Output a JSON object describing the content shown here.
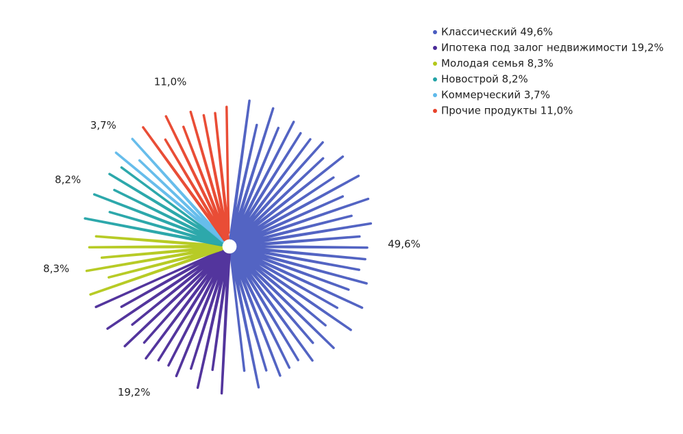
{
  "chart_data": {
    "type": "pie",
    "categories": [
      "Классический 49,6%",
      "Ипотека под залог недвижимости 19,2%",
      "Молодая семья 8,3%",
      "Новострой 8,2%",
      "Коммерческий 3,7%",
      "Прочие продукты 11,0%"
    ],
    "values": [
      49.6,
      19.2,
      8.3,
      8.2,
      3.7,
      11.0
    ],
    "value_labels": [
      "49,6%",
      "19,2%",
      "8,3%",
      "8,2%",
      "3,7%",
      "11,0%"
    ],
    "colors": [
      "#4a5cc0",
      "#4a2a98",
      "#b3c81a",
      "#22a3a6",
      "#5fb9ea",
      "#e8432b"
    ],
    "legend": "top-right"
  }
}
